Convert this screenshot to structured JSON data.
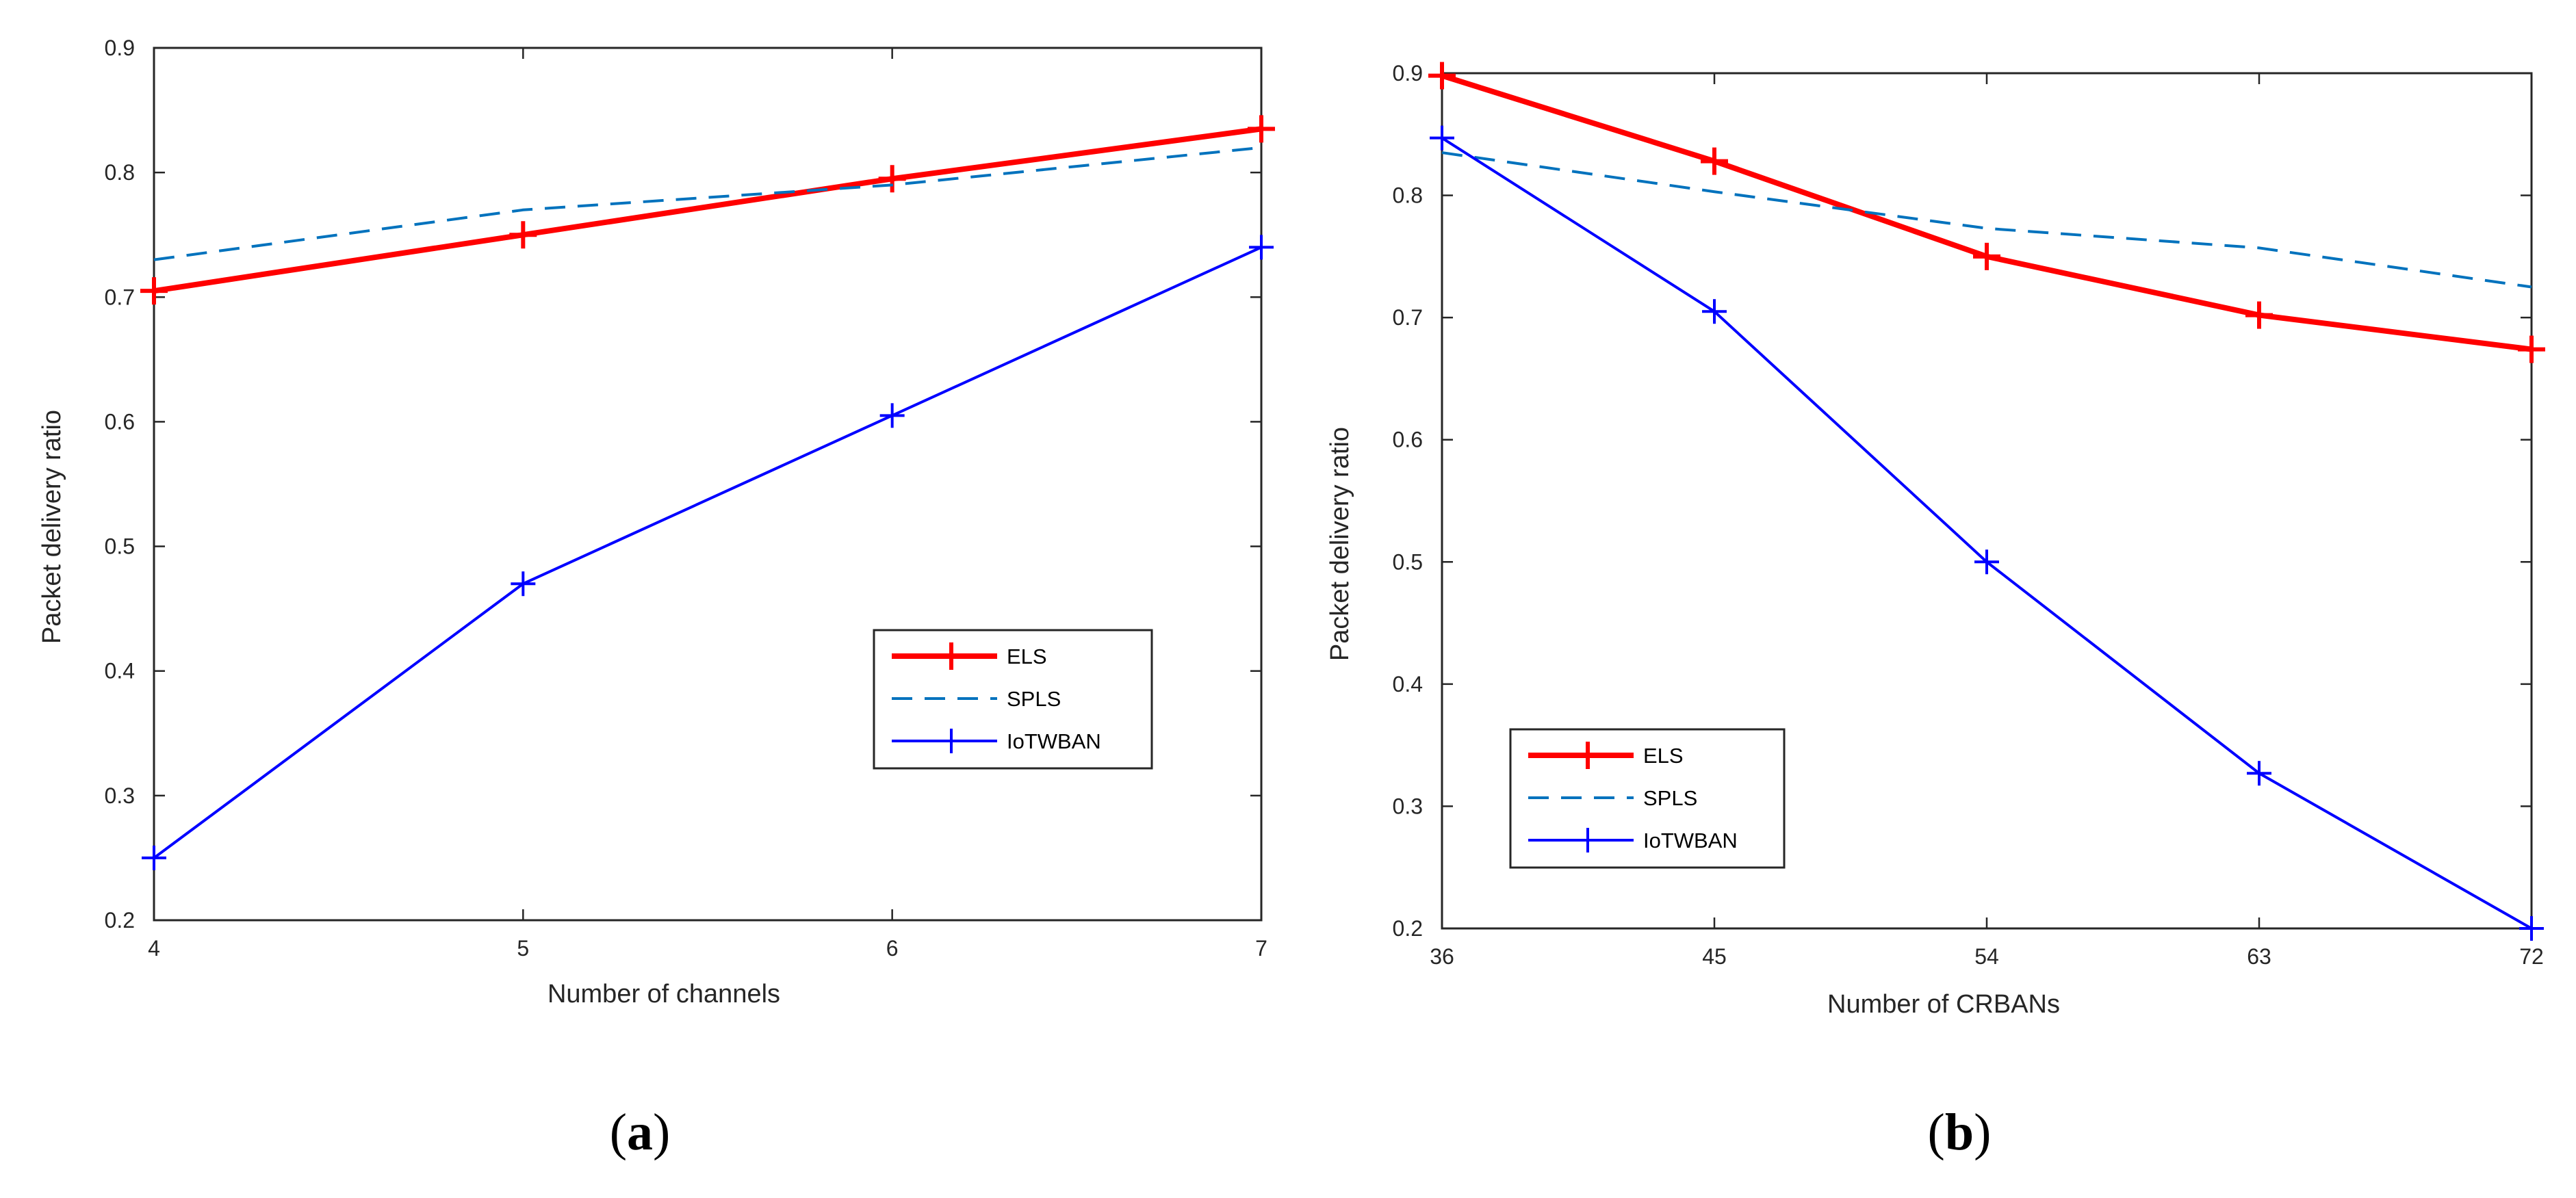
{
  "chart_data": [
    {
      "type": "line",
      "panel_label": "a",
      "title": "",
      "xlabel": "Number of channels",
      "ylabel": "Packet delivery ratio",
      "x": [
        4,
        5,
        6,
        7
      ],
      "x_ticks": [
        4,
        5,
        6,
        7
      ],
      "xlim": [
        4,
        7
      ],
      "y_ticks": [
        0.2,
        0.3,
        0.4,
        0.5,
        0.6,
        0.7,
        0.8,
        0.9
      ],
      "ylim": [
        0.2,
        0.9
      ],
      "legend_position": "lower-right",
      "series": [
        {
          "name": "ELS",
          "values": [
            0.705,
            0.75,
            0.795,
            0.835
          ],
          "color": "#ff0000",
          "style": "solid-thick",
          "marker": "plus"
        },
        {
          "name": "SPLS",
          "values": [
            0.73,
            0.77,
            0.79,
            0.82
          ],
          "color": "#0072bd",
          "style": "dashed",
          "marker": "none"
        },
        {
          "name": "IoTWBAN",
          "values": [
            0.25,
            0.47,
            0.605,
            0.74
          ],
          "color": "#0000ff",
          "style": "solid",
          "marker": "plus"
        }
      ]
    },
    {
      "type": "line",
      "panel_label": "b",
      "title": "",
      "xlabel": "Number of CRBANs",
      "ylabel": "Packet delivery ratio",
      "x": [
        36,
        45,
        54,
        63,
        72
      ],
      "x_ticks": [
        36,
        45,
        54,
        63,
        72
      ],
      "xlim": [
        36,
        72
      ],
      "y_ticks": [
        0.2,
        0.3,
        0.4,
        0.5,
        0.6,
        0.7,
        0.8,
        0.9
      ],
      "ylim": [
        0.2,
        0.9
      ],
      "legend_position": "lower-left",
      "series": [
        {
          "name": "ELS",
          "values": [
            0.898,
            0.828,
            0.75,
            0.702,
            0.674
          ],
          "color": "#ff0000",
          "style": "solid-thick",
          "marker": "plus"
        },
        {
          "name": "SPLS",
          "values": [
            0.835,
            0.803,
            0.773,
            0.757,
            0.725
          ],
          "color": "#0072bd",
          "style": "dashed",
          "marker": "none"
        },
        {
          "name": "IoTWBAN",
          "values": [
            0.847,
            0.705,
            0.5,
            0.327,
            0.2
          ],
          "color": "#0000ff",
          "style": "solid",
          "marker": "plus"
        }
      ]
    }
  ]
}
